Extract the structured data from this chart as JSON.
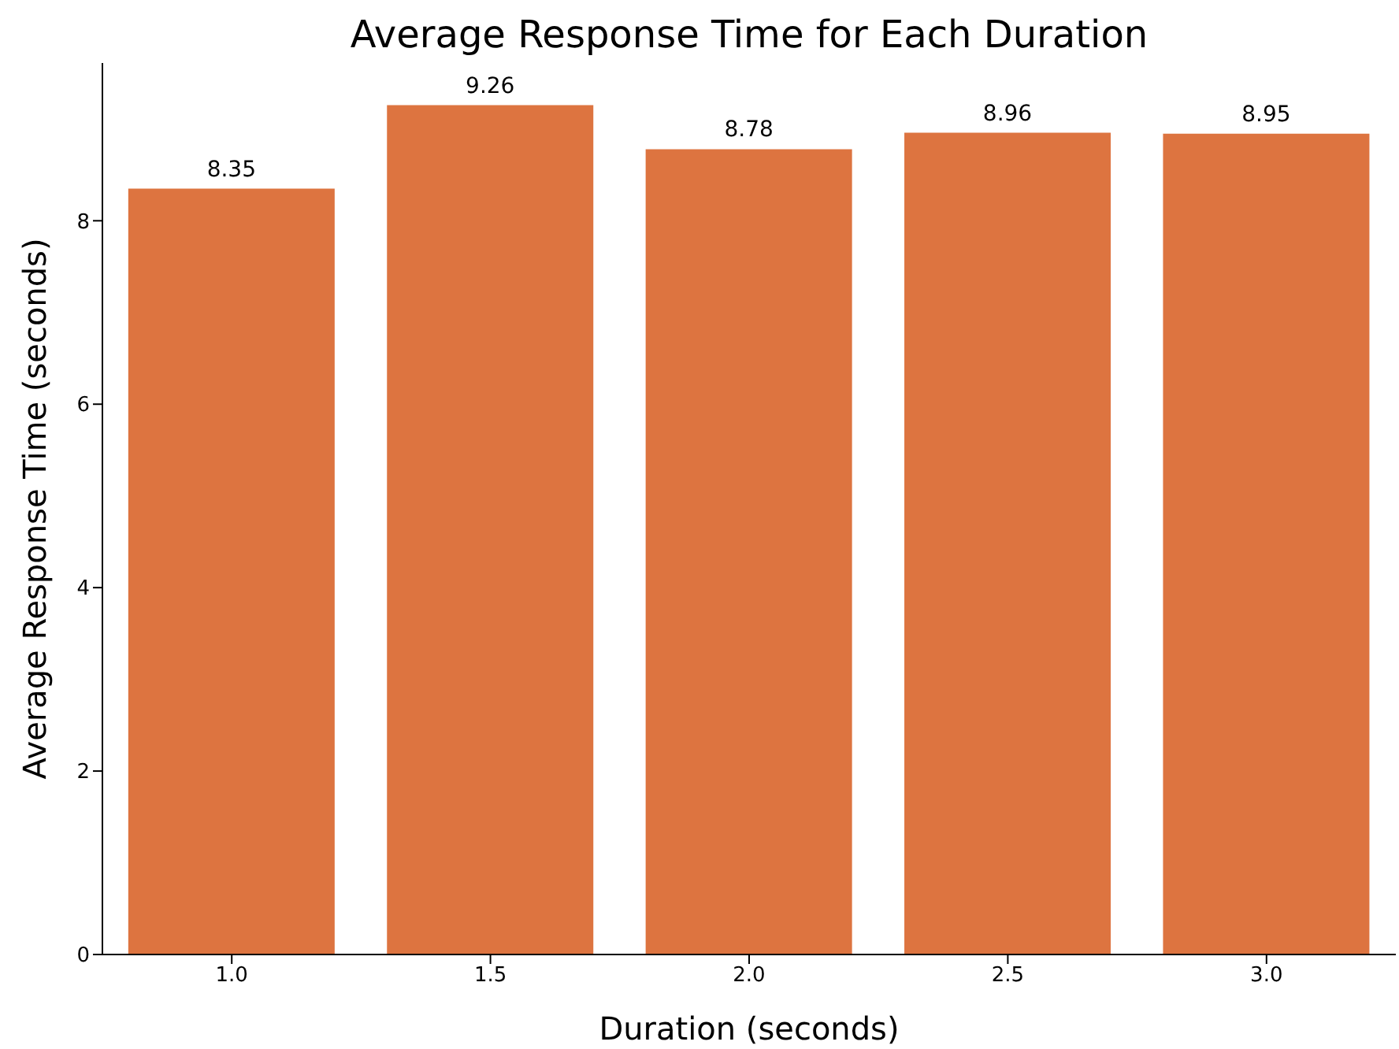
{
  "chart_data": {
    "type": "bar",
    "title": "Average Response Time for Each Duration",
    "xlabel": "Duration (seconds)",
    "ylabel": "Average Response Time (seconds)",
    "categories": [
      "1.0",
      "1.5",
      "2.0",
      "2.5",
      "3.0"
    ],
    "values": [
      8.35,
      9.26,
      8.78,
      8.96,
      8.95
    ],
    "color": "#dd7440",
    "ylim": [
      0,
      9.72
    ],
    "yticks": [
      0,
      2,
      4,
      6,
      8
    ],
    "data_labels": true,
    "grid": false,
    "legend": false
  }
}
